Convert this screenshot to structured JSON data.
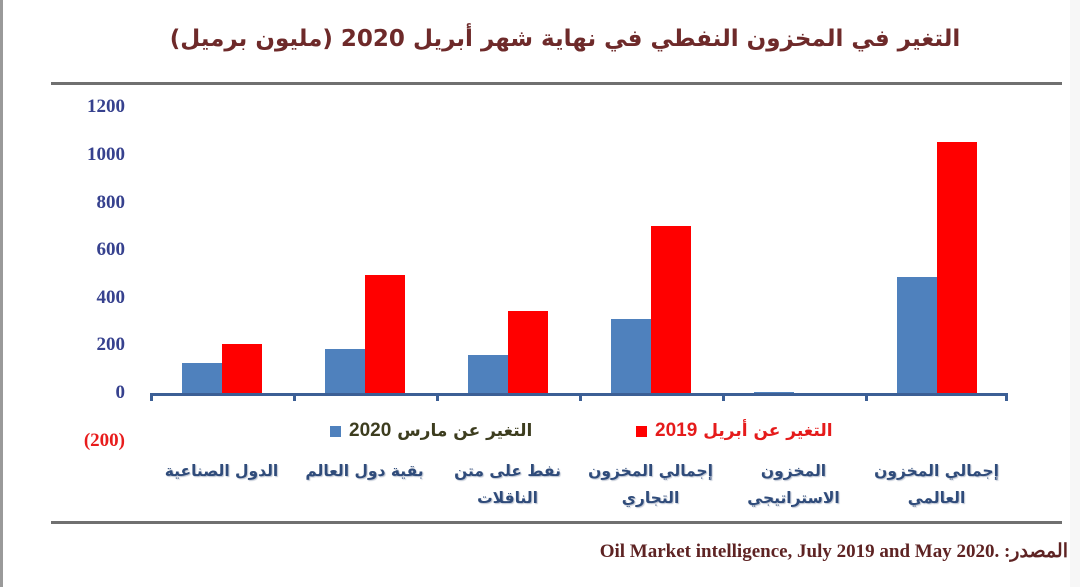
{
  "title": "التغير في المخزون النفطي في نهاية شهر أبريل 2020 (مليون برميل)",
  "y_axis": {
    "ticks": [
      "1200",
      "1000",
      "800",
      "600",
      "400",
      "200",
      "0",
      "(200)"
    ]
  },
  "legend": {
    "march": {
      "text": "التغير عن مارس",
      "year": "2020",
      "color": "#4f81bd"
    },
    "april": {
      "text": "التغير عن أبريل",
      "year": "2019",
      "color": "#ff0000"
    }
  },
  "categories": [
    "الدول الصناعية",
    "بقية دول العالم",
    "نفط على متن الناقلات",
    "إجمالي المخزون التجاري",
    "المخزون الاستراتيجي",
    "إجمالي المخزون العالمي"
  ],
  "source": {
    "label": "المصدر:",
    "text": "Oil Market intelligence, July 2019 and May 2020."
  },
  "chart_data": {
    "type": "bar",
    "title": "التغير في المخزون النفطي في نهاية شهر أبريل 2020 (مليون برميل)",
    "xlabel": "",
    "ylabel": "مليون برميل",
    "ylim": [
      -200,
      1200
    ],
    "yticks": [
      -200,
      0,
      200,
      400,
      600,
      800,
      1000,
      1200
    ],
    "grid": false,
    "legend_position": "below-axis",
    "categories": [
      "الدول الصناعية",
      "بقية دول العالم",
      "نفط على متن الناقلات",
      "إجمالي المخزون التجاري",
      "المخزون الاستراتيجي",
      "إجمالي المخزون العالمي"
    ],
    "series": [
      {
        "name": "التغير عن مارس 2020",
        "color": "#4f81bd",
        "values": [
          130,
          190,
          165,
          315,
          5,
          490
        ]
      },
      {
        "name": "التغير عن أبريل 2019",
        "color": "#ff0000",
        "values": [
          210,
          500,
          350,
          705,
          0,
          1060
        ]
      }
    ],
    "source": "المصدر: Oil Market intelligence, July 2019 and May 2020."
  }
}
